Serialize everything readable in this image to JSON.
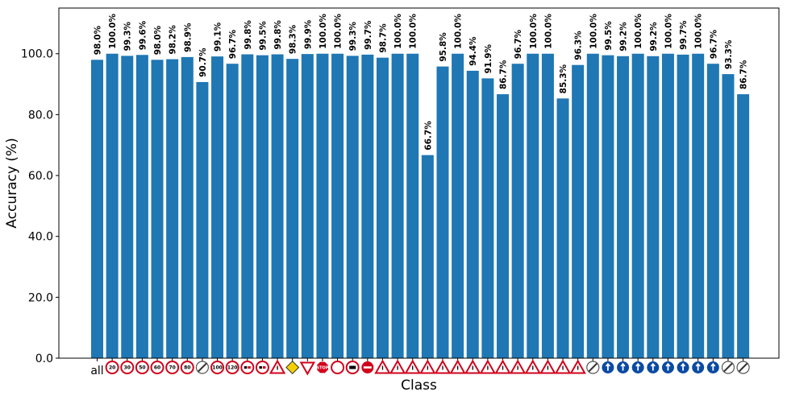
{
  "chart_data": {
    "type": "bar",
    "xlabel": "Class",
    "ylabel": "Accuracy (%)",
    "ylim": [
      0,
      115
    ],
    "yticks": [
      "0.0",
      "20.0",
      "40.0",
      "60.0",
      "80.0",
      "100.0"
    ],
    "grid": false,
    "bar_color": "#1f77b4",
    "categories": [
      "all",
      "speed-limit-20",
      "speed-limit-30",
      "speed-limit-50",
      "speed-limit-60",
      "speed-limit-70",
      "speed-limit-80",
      "end-speed-limit-80",
      "speed-limit-100",
      "speed-limit-120",
      "no-passing",
      "no-passing-trucks",
      "right-of-way-intersection",
      "priority-road",
      "yield",
      "stop",
      "no-vehicles",
      "no-trucks",
      "no-entry",
      "general-caution",
      "dangerous-curve-left",
      "dangerous-curve-right",
      "double-curve",
      "bumpy-road",
      "slippery-road",
      "road-narrows-right",
      "road-work",
      "traffic-signals",
      "pedestrians",
      "children-crossing",
      "bicycles-crossing",
      "ice-snow",
      "wild-animals",
      "end-all-limits",
      "turn-right-ahead",
      "turn-left-ahead",
      "ahead-only",
      "straight-or-right",
      "straight-or-left",
      "keep-right",
      "keep-left",
      "roundabout",
      "end-no-passing",
      "end-no-passing-trucks"
    ],
    "tick_text": {
      "all": "all"
    },
    "sign_text": {
      "speed-limit-20": "20",
      "speed-limit-30": "30",
      "speed-limit-50": "50",
      "speed-limit-60": "60",
      "speed-limit-70": "70",
      "speed-limit-80": "80",
      "speed-limit-100": "100",
      "speed-limit-120": "120",
      "stop": "STOP"
    },
    "values": [
      98.0,
      100.0,
      99.3,
      99.6,
      98.0,
      98.2,
      98.9,
      90.7,
      99.1,
      96.7,
      99.8,
      99.5,
      99.8,
      98.3,
      99.9,
      100.0,
      100.0,
      99.3,
      99.7,
      98.7,
      100.0,
      100.0,
      66.7,
      95.8,
      100.0,
      94.4,
      91.9,
      86.7,
      96.7,
      100.0,
      100.0,
      85.3,
      96.3,
      100.0,
      99.5,
      99.2,
      100.0,
      99.2,
      100.0,
      99.7,
      100.0,
      96.7,
      93.3,
      86.7
    ],
    "data_labels": [
      "98.0%",
      "100.0%",
      "99.3%",
      "99.6%",
      "98.0%",
      "98.2%",
      "98.9%",
      "90.7%",
      "99.1%",
      "96.7%",
      "99.8%",
      "99.5%",
      "99.8%",
      "98.3%",
      "99.9%",
      "100.0%",
      "100.0%",
      "99.3%",
      "99.7%",
      "98.7%",
      "100.0%",
      "100.0%",
      "66.7%",
      "95.8%",
      "100.0%",
      "94.4%",
      "91.9%",
      "86.7%",
      "96.7%",
      "100.0%",
      "100.0%",
      "85.3%",
      "96.3%",
      "100.0%",
      "99.5%",
      "99.2%",
      "100.0%",
      "99.2%",
      "100.0%",
      "99.7%",
      "100.0%",
      "96.7%",
      "93.3%",
      "86.7%"
    ]
  }
}
